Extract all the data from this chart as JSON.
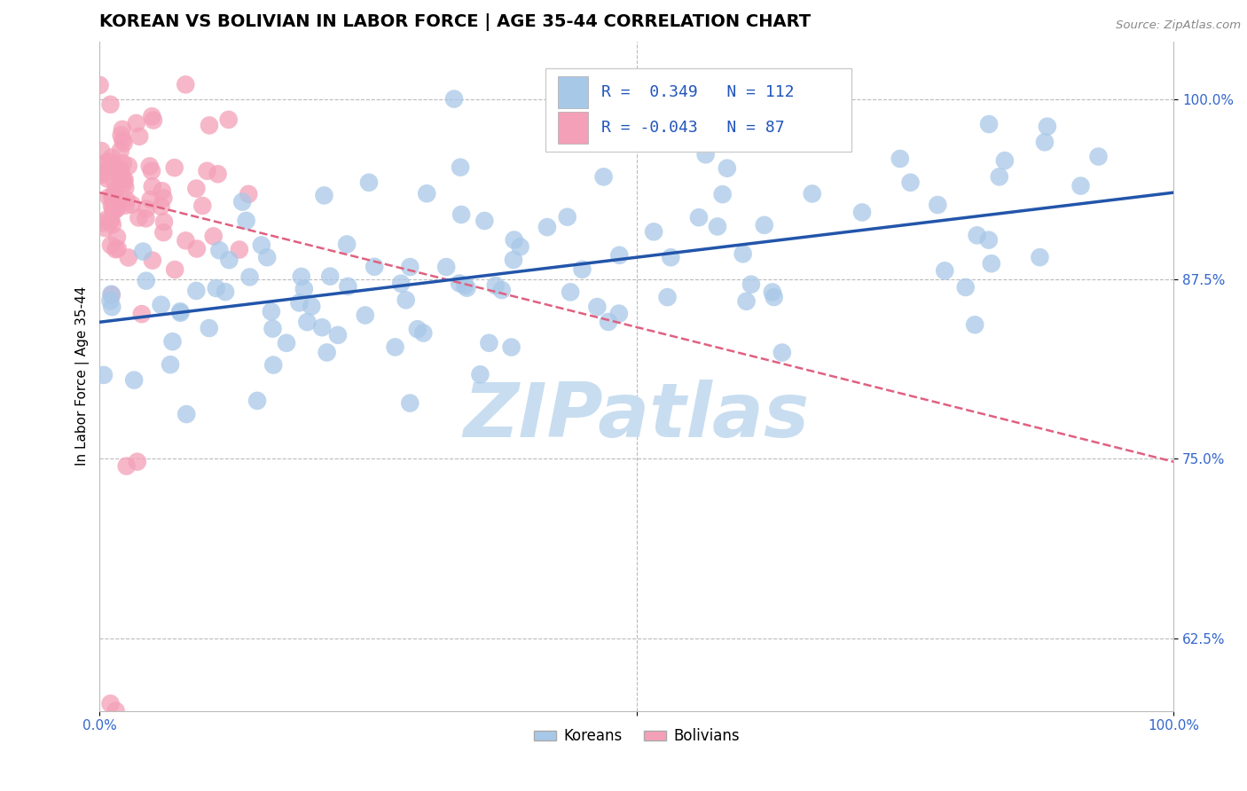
{
  "title": "KOREAN VS BOLIVIAN IN LABOR FORCE | AGE 35-44 CORRELATION CHART",
  "source_text": "Source: ZipAtlas.com",
  "ylabel": "In Labor Force | Age 35-44",
  "xlim": [
    0.0,
    1.0
  ],
  "ylim": [
    0.575,
    1.04
  ],
  "ytick_positions": [
    0.625,
    0.75,
    0.875,
    1.0
  ],
  "ytick_labels": [
    "62.5%",
    "75.0%",
    "87.5%",
    "100.0%"
  ],
  "korean_R": 0.349,
  "korean_N": 112,
  "bolivian_R": -0.043,
  "bolivian_N": 87,
  "korean_color": "#A8C8E8",
  "bolivian_color": "#F4A0B8",
  "korean_trend_color": "#2255AA",
  "bolivian_trend_color": "#E06080",
  "background_color": "#FFFFFF",
  "grid_color": "#BBBBBB",
  "watermark_text": "ZIPatlas",
  "watermark_color": "#C8DDF0",
  "title_fontsize": 14,
  "label_fontsize": 11,
  "tick_fontsize": 11,
  "legend_R_color": "#2255BB",
  "legend_label1": "Koreans",
  "legend_label2": "Bolivians",
  "korean_trend_y0": 0.845,
  "korean_trend_y1": 0.935,
  "bolivian_trend_y0": 0.935,
  "bolivian_trend_y1": 0.748
}
